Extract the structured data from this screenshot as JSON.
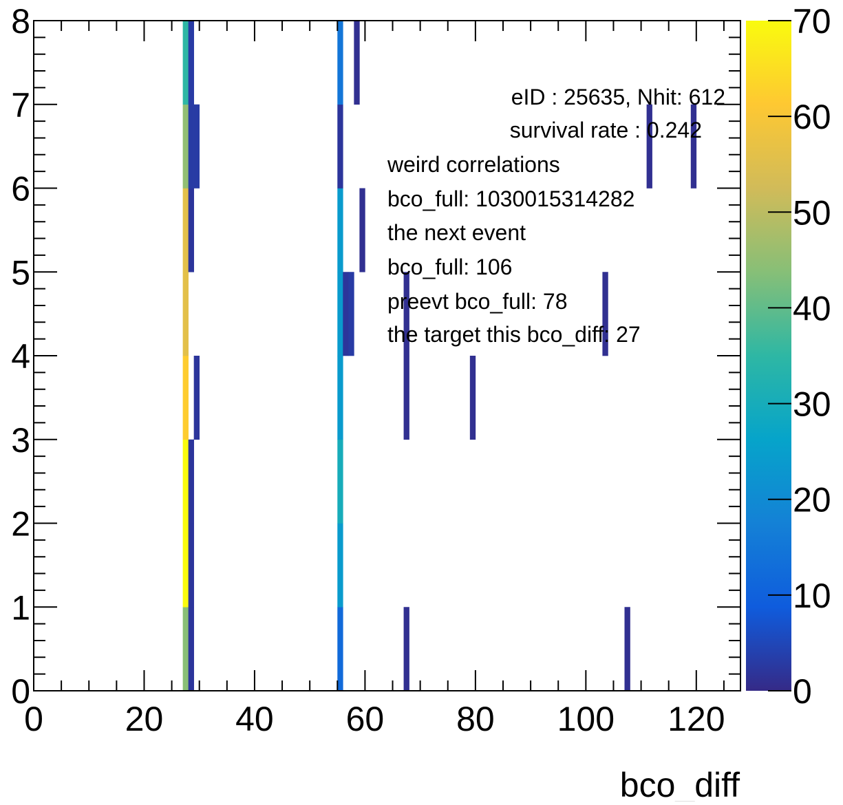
{
  "chart_data": {
    "type": "heatmap",
    "title": "",
    "xlabel": "bco_diff",
    "ylabel": "",
    "xlim": [
      0,
      128
    ],
    "ylim": [
      0,
      8
    ],
    "x_ticks": [
      "0",
      "20",
      "40",
      "60",
      "80",
      "100",
      "120"
    ],
    "y_ticks": [
      "0",
      "1",
      "2",
      "3",
      "4",
      "5",
      "6",
      "7",
      "8"
    ],
    "colorbar": {
      "min": 0,
      "max": 70,
      "ticks": [
        "0",
        "10",
        "20",
        "30",
        "40",
        "50",
        "60",
        "70"
      ],
      "palette": [
        "#352a87",
        "#0f5cdd",
        "#1481d6",
        "#06a4ca",
        "#2eb7a4",
        "#87bf77",
        "#d1bb59",
        "#fec832",
        "#f9fb0e"
      ]
    },
    "cells": [
      {
        "x": 27,
        "y": 0,
        "z": 44
      },
      {
        "x": 28,
        "y": 0,
        "z": 2
      },
      {
        "x": 55,
        "y": 0,
        "z": 12
      },
      {
        "x": 67,
        "y": 0,
        "z": 1
      },
      {
        "x": 107,
        "y": 0,
        "z": 1
      },
      {
        "x": 27,
        "y": 1,
        "z": 70
      },
      {
        "x": 28,
        "y": 1,
        "z": 2
      },
      {
        "x": 55,
        "y": 1,
        "z": 24
      },
      {
        "x": 27,
        "y": 2,
        "z": 70
      },
      {
        "x": 28,
        "y": 2,
        "z": 2
      },
      {
        "x": 55,
        "y": 2,
        "z": 30
      },
      {
        "x": 27,
        "y": 3,
        "z": 62
      },
      {
        "x": 29,
        "y": 3,
        "z": 2
      },
      {
        "x": 55,
        "y": 3,
        "z": 24
      },
      {
        "x": 67,
        "y": 3,
        "z": 1
      },
      {
        "x": 79,
        "y": 3,
        "z": 1
      },
      {
        "x": 27,
        "y": 4,
        "z": 56
      },
      {
        "x": 55,
        "y": 4,
        "z": 24
      },
      {
        "x": 56,
        "y": 4,
        "z": 2
      },
      {
        "x": 57,
        "y": 4,
        "z": 3
      },
      {
        "x": 67,
        "y": 4,
        "z": 1
      },
      {
        "x": 103,
        "y": 4,
        "z": 1
      },
      {
        "x": 27,
        "y": 5,
        "z": 56
      },
      {
        "x": 28,
        "y": 5,
        "z": 2
      },
      {
        "x": 55,
        "y": 5,
        "z": 24
      },
      {
        "x": 59,
        "y": 5,
        "z": 1
      },
      {
        "x": 27,
        "y": 6,
        "z": 45
      },
      {
        "x": 28,
        "y": 6,
        "z": 3
      },
      {
        "x": 29,
        "y": 6,
        "z": 3
      },
      {
        "x": 55,
        "y": 6,
        "z": 2
      },
      {
        "x": 111,
        "y": 6,
        "z": 1
      },
      {
        "x": 119,
        "y": 6,
        "z": 1
      },
      {
        "x": 27,
        "y": 7,
        "z": 35
      },
      {
        "x": 28,
        "y": 7,
        "z": 3
      },
      {
        "x": 55,
        "y": 7,
        "z": 15
      },
      {
        "x": 58,
        "y": 7,
        "z": 1
      }
    ],
    "annotations": [
      "eID : 25635, Nhit: 612",
      "survival rate : 0.242",
      "weird correlations",
      "bco_full: 1030015314282",
      "the next event",
      "bco_full: 106",
      "preevt bco_full: 78",
      "the target this bco_diff: 27"
    ]
  }
}
